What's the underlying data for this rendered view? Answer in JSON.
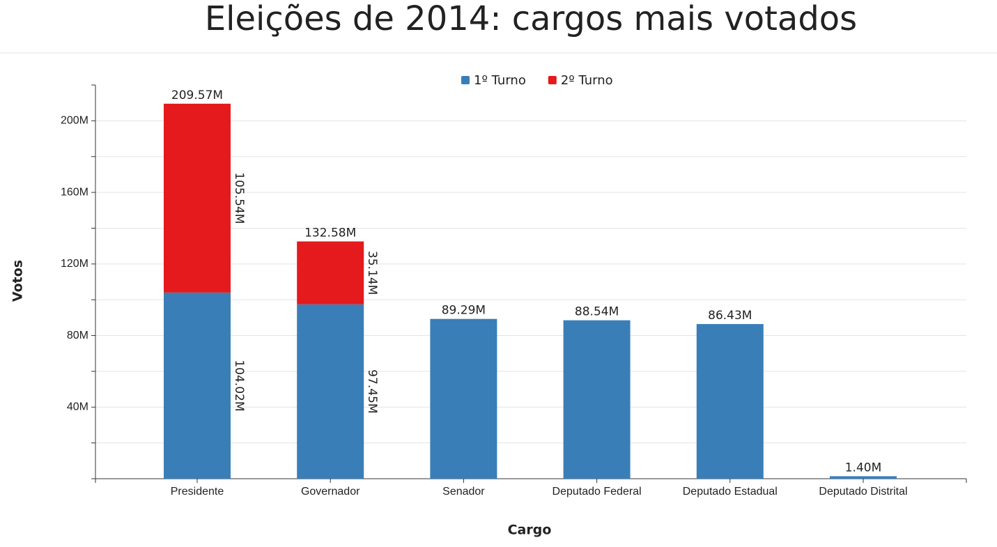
{
  "chart_data": {
    "type": "stacked_bar",
    "title": "Eleições de 2014: cargos mais votados",
    "x_label": "Cargo",
    "y_label": "Votos",
    "categories": [
      "Presidente",
      "Governador",
      "Senador",
      "Deputado Federal",
      "Deputado Estadual",
      "Deputado Distrital"
    ],
    "series": [
      {
        "name": "1º Turno",
        "color": "#3a7eb8",
        "values": [
          104020000,
          97450000,
          89290000,
          88540000,
          86430000,
          1400000
        ],
        "value_labels": [
          "104.02M",
          "97.45M",
          null,
          null,
          null,
          null
        ]
      },
      {
        "name": "2º Turno",
        "color": "#e41a1c",
        "values": [
          105540000,
          35140000,
          null,
          null,
          null,
          null
        ],
        "value_labels": [
          "105.54M",
          "35.14M",
          null,
          null,
          null,
          null
        ]
      }
    ],
    "totals": [
      209570000,
      132580000,
      89290000,
      88540000,
      86430000,
      1400000
    ],
    "total_labels": [
      "209.57M",
      "132.58M",
      "89.29M",
      "88.54M",
      "86.43M",
      "1.40M"
    ],
    "ylim": [
      0,
      220000000
    ],
    "yticks": [
      {
        "value": 0,
        "label": null
      },
      {
        "value": 20000000,
        "label": null
      },
      {
        "value": 40000000,
        "label": "40M"
      },
      {
        "value": 60000000,
        "label": null
      },
      {
        "value": 80000000,
        "label": "80M"
      },
      {
        "value": 100000000,
        "label": null
      },
      {
        "value": 120000000,
        "label": "120M"
      },
      {
        "value": 140000000,
        "label": null
      },
      {
        "value": 160000000,
        "label": "160M"
      },
      {
        "value": 180000000,
        "label": null
      },
      {
        "value": 200000000,
        "label": "200M"
      }
    ],
    "grid": true,
    "legend": "top"
  }
}
